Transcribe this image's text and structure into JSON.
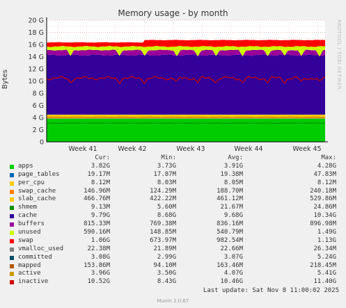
{
  "chart_data": {
    "type": "area",
    "title": "Memory usage - by month",
    "ylabel": "Bytes",
    "side_label": "RRDTOOL / TOBI OETIKER",
    "ylim": [
      0,
      20
    ],
    "y_ticks": [
      "0",
      "2 G",
      "4 G",
      "6 G",
      "8 G",
      "10 G",
      "12 G",
      "14 G",
      "16 G",
      "18 G",
      "20 G"
    ],
    "x_ticks": [
      "Week 41",
      "Week 42",
      "Week 43",
      "Week 44",
      "Week 45"
    ],
    "grid": true,
    "stack_bands_gb": [
      {
        "name": "apps",
        "color": "#00cc00",
        "lower": 0,
        "upper": 3.82
      },
      {
        "name": "page_tables",
        "color": "#0066b3",
        "lower": 3.82,
        "upper": 3.84
      },
      {
        "name": "per_cpu",
        "color": "#ffcc00",
        "lower": 3.84,
        "upper": 3.85
      },
      {
        "name": "swap_cache",
        "color": "#ff8000",
        "lower": 3.85,
        "upper": 4.0
      },
      {
        "name": "slab_cache",
        "color": "#ffcc00",
        "lower": 4.0,
        "upper": 4.47
      },
      {
        "name": "cache",
        "color": "#330099",
        "lower": 4.47,
        "upper": 14.26
      },
      {
        "name": "buffers",
        "color": "#990099",
        "lower": 14.26,
        "upper": 15.08
      },
      {
        "name": "unused",
        "color": "#ccff00",
        "lower": 15.08,
        "upper": 15.67
      },
      {
        "name": "swap",
        "color": "#ff0000",
        "lower": 15.67,
        "upper": 16.73
      }
    ],
    "lines_gb": [
      {
        "name": "committed",
        "color": "#008f00",
        "value": 3.07
      },
      {
        "name": "active",
        "color": "#cc9900",
        "value": 4.07
      },
      {
        "name": "inactive",
        "color": "#cc0000",
        "value": 10.46
      }
    ],
    "legend_header": {
      "cur": "Cur:",
      "min": "Min:",
      "avg": "Avg:",
      "max": "Max:"
    },
    "legend": [
      {
        "label": "apps",
        "color": "#00cc00",
        "cur": "3.82G",
        "min": "3.73G",
        "avg": "3.91G",
        "max": "4.28G"
      },
      {
        "label": "page_tables",
        "color": "#0066b3",
        "cur": "19.17M",
        "min": "17.87M",
        "avg": "19.38M",
        "max": "47.83M"
      },
      {
        "label": "per_cpu",
        "color": "#ffcc00",
        "cur": "8.12M",
        "min": "8.03M",
        "avg": "8.05M",
        "max": "8.12M"
      },
      {
        "label": "swap_cache",
        "color": "#ff8000",
        "cur": "146.96M",
        "min": "124.29M",
        "avg": "188.70M",
        "max": "240.18M"
      },
      {
        "label": "slab_cache",
        "color": "#ffcc00",
        "cur": "466.76M",
        "min": "422.22M",
        "avg": "461.12M",
        "max": "529.86M"
      },
      {
        "label": "shmem",
        "color": "#008f00",
        "cur": "9.13M",
        "min": "5.60M",
        "avg": "21.67M",
        "max": "24.86M"
      },
      {
        "label": "cache",
        "color": "#330099",
        "cur": "9.79G",
        "min": "8.68G",
        "avg": "9.68G",
        "max": "10.34G"
      },
      {
        "label": "buffers",
        "color": "#990099",
        "cur": "815.33M",
        "min": "769.38M",
        "avg": "836.16M",
        "max": "896.98M"
      },
      {
        "label": "unused",
        "color": "#ccff00",
        "cur": "590.16M",
        "min": "148.85M",
        "avg": "540.79M",
        "max": "1.49G"
      },
      {
        "label": "swap",
        "color": "#ff0000",
        "cur": "1.06G",
        "min": "673.97M",
        "avg": "982.54M",
        "max": "1.13G"
      },
      {
        "label": "vmalloc_used",
        "color": "#808080",
        "cur": "22.38M",
        "min": "21.89M",
        "avg": "22.66M",
        "max": "26.34M"
      },
      {
        "label": "committed",
        "color": "#004d66",
        "cur": "3.08G",
        "min": "2.99G",
        "avg": "3.07G",
        "max": "5.24G"
      },
      {
        "label": "mapped",
        "color": "#b35900",
        "cur": "153.86M",
        "min": "94.10M",
        "avg": "163.46M",
        "max": "218.45M"
      },
      {
        "label": "active",
        "color": "#cc9900",
        "cur": "3.96G",
        "min": "3.50G",
        "avg": "4.07G",
        "max": "5.41G"
      },
      {
        "label": "inactive",
        "color": "#cc0000",
        "cur": "10.52G",
        "min": "8.43G",
        "avg": "10.46G",
        "max": "11.40G"
      }
    ]
  },
  "last_update": "Last update:  Sat Nov  8 11:00:02 2025",
  "footer": "Munin 2.0.67"
}
